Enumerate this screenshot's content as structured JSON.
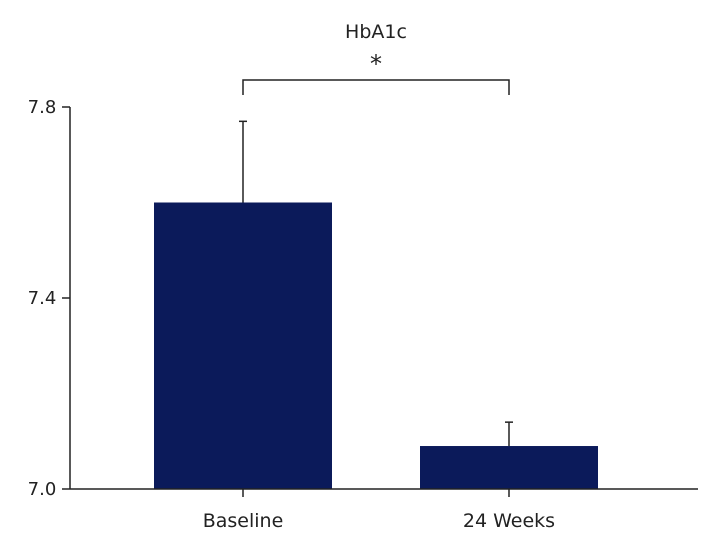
{
  "chart_data": {
    "type": "bar",
    "title": "HbA1c",
    "categories": [
      "Baseline",
      "24 Weeks"
    ],
    "series": [
      {
        "values": [
          7.6,
          7.09
        ],
        "error_upper": [
          0.17,
          0.05
        ]
      }
    ],
    "xlabel": "",
    "ylabel": "",
    "ylim": [
      7.0,
      7.8
    ],
    "yticks": [
      7.0,
      7.4,
      7.8
    ],
    "ytick_labels": [
      "7.0",
      "7.4",
      "7.8"
    ],
    "grid": false,
    "legend": "none",
    "bar_color": "#0b1a5a",
    "significance": {
      "between": [
        "Baseline",
        "24 Weeks"
      ],
      "label": "*"
    }
  }
}
